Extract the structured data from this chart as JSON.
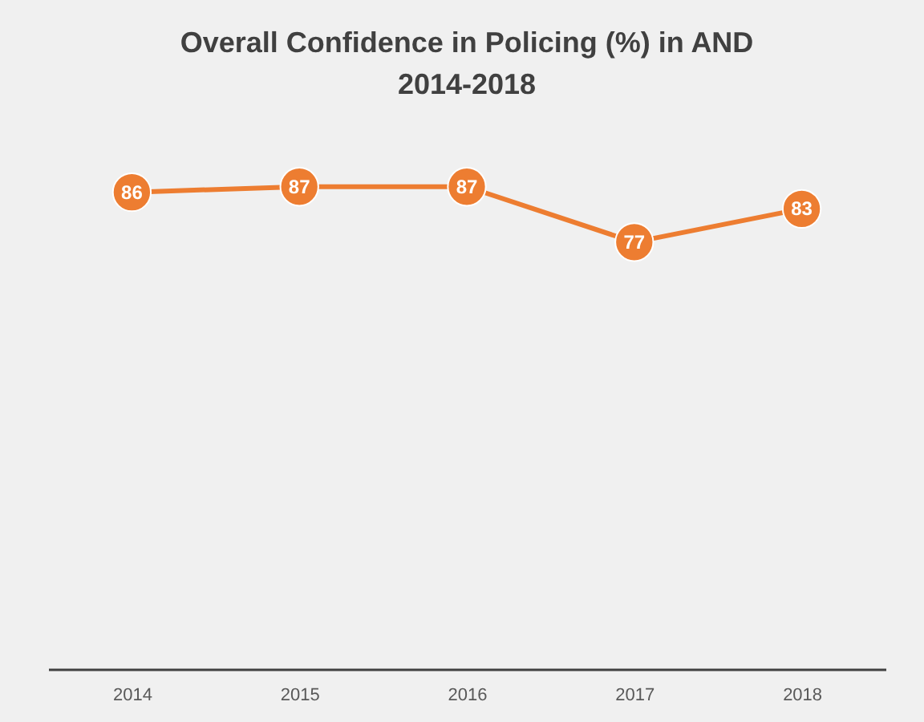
{
  "chart_data": {
    "type": "line",
    "title": "Overall Confidence in Policing (%) in AND\n2014-2018",
    "categories": [
      "2014",
      "2015",
      "2016",
      "2017",
      "2018"
    ],
    "series": [
      {
        "color": "#ed7d31",
        "values": [
          86,
          87,
          87,
          77,
          83
        ]
      }
    ],
    "tick_labels": "x",
    "data_labels": true,
    "marker": "circle",
    "grid": false
  }
}
